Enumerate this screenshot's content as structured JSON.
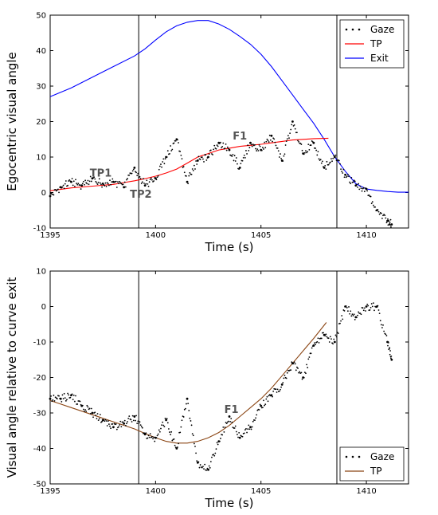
{
  "chart_data": [
    {
      "type": "line",
      "xlabel": "Time (s)",
      "ylabel": "Egocentric visual angle",
      "xlim": [
        1395,
        1412
      ],
      "ylim": [
        -10,
        50
      ],
      "xticks": [
        1395,
        1400,
        1405,
        1410
      ],
      "yticks": [
        -10,
        0,
        10,
        20,
        30,
        40,
        50
      ],
      "vlines": [
        1399.2,
        1408.6,
        1412.0
      ],
      "legend": "top-right",
      "legend_entries": [
        "Gaze",
        "TP",
        "Exit"
      ],
      "series": [
        {
          "name": "Exit",
          "color": "#0000ff",
          "style": "line",
          "x": [
            1395,
            1396,
            1397,
            1398,
            1399,
            1399.5,
            1400,
            1400.5,
            1401,
            1401.5,
            1402,
            1402.5,
            1403,
            1403.5,
            1404,
            1404.5,
            1405,
            1405.5,
            1406,
            1406.5,
            1407,
            1407.5,
            1408,
            1408.5,
            1409,
            1409.5,
            1410,
            1410.5,
            1411,
            1411.5,
            1412
          ],
          "y": [
            27,
            29.5,
            32.5,
            35.5,
            38.5,
            40.5,
            43,
            45.3,
            47,
            48,
            48.5,
            48.5,
            47.5,
            46,
            44,
            41.8,
            39,
            35.5,
            31.5,
            27.5,
            23.5,
            19.5,
            15,
            10,
            6,
            2.5,
            1,
            0.6,
            0.3,
            0.1,
            0.1
          ]
        },
        {
          "name": "TP",
          "color": "#ff0000",
          "style": "line",
          "x": [
            1395,
            1396,
            1397,
            1398,
            1398.5,
            1399,
            1399.5,
            1400,
            1400.5,
            1401,
            1401.5,
            1402,
            1402.5,
            1403,
            1403.5,
            1404,
            1404.5,
            1405,
            1405.5,
            1406,
            1406.5,
            1407,
            1407.5,
            1408.2
          ],
          "y": [
            0.5,
            1.3,
            1.8,
            2.3,
            2.8,
            3.3,
            3.9,
            4.6,
            5.5,
            6.6,
            8.3,
            10.0,
            11.0,
            12.0,
            12.5,
            13.0,
            13.3,
            13.6,
            14.0,
            14.4,
            14.8,
            15.0,
            15.2,
            15.3
          ]
        },
        {
          "name": "Gaze",
          "color": "#000000",
          "style": "dots",
          "x": [
            1395,
            1395.5,
            1396,
            1396.5,
            1397,
            1397.5,
            1398,
            1398.5,
            1399,
            1399.5,
            1400,
            1400.5,
            1401,
            1401.5,
            1402,
            1402.5,
            1403,
            1403.5,
            1404,
            1404.5,
            1405,
            1405.5,
            1406,
            1406.5,
            1407,
            1407.5,
            1408,
            1408.5,
            1409,
            1409.5,
            1410,
            1410.5,
            1411,
            1411.2
          ],
          "y": [
            -1,
            1.5,
            3,
            2,
            4,
            2.5,
            3,
            1.5,
            7,
            2,
            4,
            10,
            15,
            3,
            9,
            10,
            14,
            12,
            7,
            14,
            12,
            16,
            9,
            20,
            11,
            14,
            7,
            10,
            5,
            2,
            1,
            -5,
            -8,
            -9
          ]
        }
      ],
      "annotations": [
        {
          "text": "TP1",
          "x": 1397.4,
          "y": 4.5
        },
        {
          "text": "TP2",
          "x": 1399.3,
          "y": -1.5
        },
        {
          "text": "F1",
          "x": 1404.0,
          "y": 15.0
        }
      ]
    },
    {
      "type": "line",
      "xlabel": "Time (s)",
      "ylabel": "Visual angle relative to curve exit",
      "xlim": [
        1395,
        1412
      ],
      "ylim": [
        -50,
        10
      ],
      "xticks": [
        1395,
        1400,
        1405,
        1410
      ],
      "yticks": [
        -50,
        -40,
        -30,
        -20,
        -10,
        0,
        10
      ],
      "vlines": [
        1399.2,
        1408.6,
        1412.0
      ],
      "legend": "bottom-right",
      "legend_entries": [
        "Gaze",
        "TP"
      ],
      "series": [
        {
          "name": "TP",
          "color": "#8b4513",
          "style": "line",
          "x": [
            1395,
            1396,
            1397,
            1398,
            1399,
            1399.5,
            1400,
            1400.5,
            1401,
            1401.5,
            1402,
            1402.5,
            1403,
            1403.5,
            1404,
            1404.5,
            1405,
            1405.5,
            1406,
            1406.5,
            1407,
            1407.5,
            1408.1
          ],
          "y": [
            -26.5,
            -28.5,
            -30.5,
            -32.5,
            -34.5,
            -35.8,
            -37,
            -38,
            -38.5,
            -38.5,
            -38,
            -37,
            -35.5,
            -33.5,
            -31,
            -28.5,
            -26,
            -23,
            -19.5,
            -16,
            -12.5,
            -9,
            -4.5
          ]
        },
        {
          "name": "Gaze",
          "color": "#000000",
          "style": "dots",
          "x": [
            1395,
            1395.5,
            1396,
            1396.5,
            1397,
            1397.5,
            1398,
            1398.5,
            1399,
            1399.5,
            1400,
            1400.5,
            1401,
            1401.5,
            1402,
            1402.5,
            1403,
            1403.5,
            1404,
            1404.5,
            1405,
            1405.5,
            1406,
            1406.5,
            1407,
            1407.5,
            1408,
            1408.5,
            1409,
            1409.5,
            1410,
            1410.5,
            1411,
            1411.2
          ],
          "y": [
            -26,
            -26,
            -25,
            -28,
            -30,
            -32,
            -34,
            -33,
            -31,
            -36,
            -37,
            -32,
            -40,
            -26,
            -44,
            -46,
            -38,
            -31,
            -37,
            -34,
            -28,
            -25,
            -22,
            -16,
            -20,
            -11,
            -8,
            -10,
            0,
            -3,
            0,
            0,
            -10,
            -15
          ]
        }
      ],
      "annotations": [
        {
          "text": "F1",
          "x": 1403.6,
          "y": -30.0
        }
      ]
    }
  ]
}
